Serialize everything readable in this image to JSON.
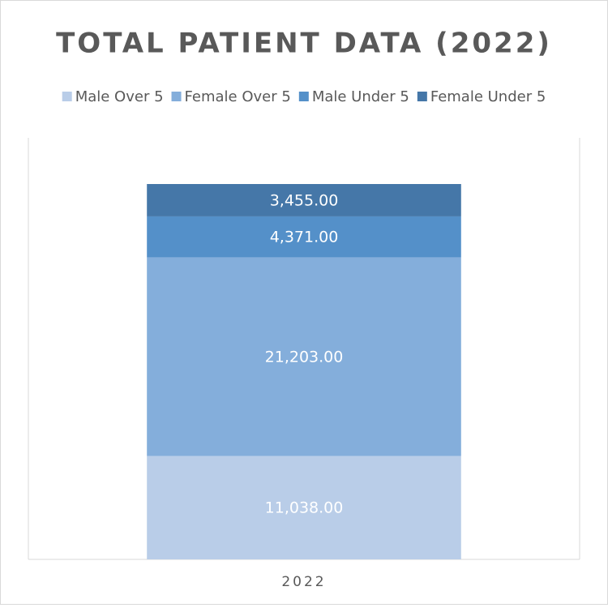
{
  "chart_data": {
    "type": "stacked_bar",
    "title": "TOTAL PATIENT DATA (2022)",
    "categories": [
      "2022"
    ],
    "series": [
      {
        "name": "Male Over 5",
        "color": "#b9cde8",
        "values": [
          11038
        ],
        "value_labels": [
          "11,038.00"
        ]
      },
      {
        "name": "Female Over 5",
        "color": "#84aedb",
        "values": [
          21203
        ],
        "value_labels": [
          "21,203.00"
        ]
      },
      {
        "name": "Male Under 5",
        "color": "#5490c9",
        "values": [
          4371
        ],
        "value_labels": [
          "4,371.00"
        ]
      },
      {
        "name": "Female Under 5",
        "color": "#4577a8",
        "values": [
          3455
        ],
        "value_labels": [
          "3,455.00"
        ]
      }
    ],
    "ylim": [
      0,
      45000
    ],
    "legend": "top"
  }
}
